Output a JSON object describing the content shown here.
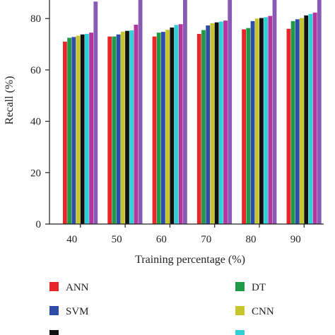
{
  "chart_data": {
    "type": "bar",
    "xlabel": "Training percentage (%)",
    "ylabel": "Recall (%)",
    "ylim": [
      0,
      90
    ],
    "yticks": [
      0,
      20,
      40,
      60,
      80
    ],
    "categories": [
      "40",
      "50",
      "60",
      "70",
      "80",
      "90"
    ],
    "grid": false,
    "legend_position": "bottom",
    "series": [
      {
        "name": "ANN",
        "color": "#e8262a",
        "values": [
          71,
          73,
          73,
          74,
          75.8,
          76
        ]
      },
      {
        "name": "DT",
        "color": "#1f9a47",
        "values": [
          72.5,
          73,
          74.5,
          75.5,
          76.3,
          79
        ]
      },
      {
        "name": "SVM",
        "color": "#2f4da8",
        "values": [
          72.8,
          73.8,
          74.8,
          77.3,
          79,
          79.7
        ]
      },
      {
        "name": "CNN",
        "color": "#c7c52c",
        "values": [
          73.3,
          74.9,
          75.6,
          78.2,
          80,
          80.2
        ]
      },
      {
        "name": "",
        "color": "#111111",
        "values": [
          73.8,
          75.2,
          76.5,
          78.5,
          80.2,
          81.2
        ]
      },
      {
        "name": "",
        "color": "#2fd0d8",
        "values": [
          74,
          75.4,
          77.5,
          78.8,
          80.5,
          81.8
        ]
      },
      {
        "name": "",
        "color": "#b4359e",
        "values": [
          74.5,
          77.6,
          77.8,
          79.2,
          81,
          82.3
        ]
      },
      {
        "name": "",
        "color": "#8a5bb5",
        "values": [
          86.6,
          90,
          90,
          90,
          90,
          90
        ]
      }
    ],
    "legend": [
      {
        "name": "ANN",
        "color": "#e8262a"
      },
      {
        "name": "DT",
        "color": "#1f9a47"
      },
      {
        "name": "SVM",
        "color": "#2f4da8"
      },
      {
        "name": "CNN",
        "color": "#c7c52c"
      },
      {
        "name": "",
        "color": "#111111"
      },
      {
        "name": "",
        "color": "#2fd0d8"
      }
    ]
  }
}
